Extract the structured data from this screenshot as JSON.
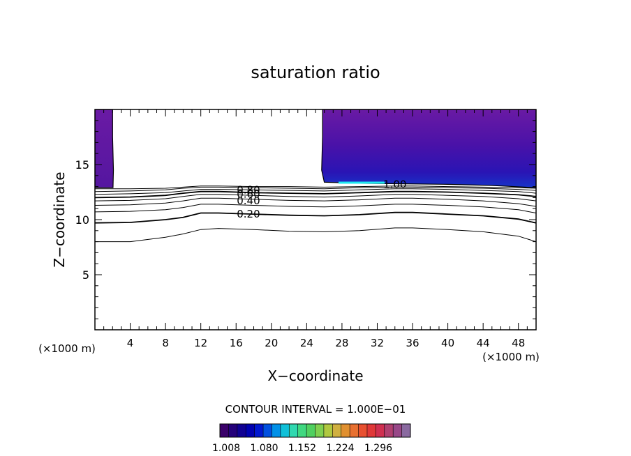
{
  "chart_data": {
    "type": "contour",
    "title": "saturation ratio",
    "xlabel": "X−coordinate",
    "ylabel": "Z−coordinate",
    "x_unit_left": "(×1000 m)",
    "x_unit_right": "(×1000 m)",
    "xlim": [
      0,
      50
    ],
    "ylim": [
      0,
      20
    ],
    "x_ticks": [
      4,
      8,
      12,
      16,
      20,
      24,
      28,
      32,
      36,
      40,
      44,
      48
    ],
    "y_ticks": [
      5,
      10,
      15
    ],
    "x_tick_labels": [
      "4",
      "8",
      "12",
      "16",
      "20",
      "24",
      "28",
      "32",
      "36",
      "40",
      "44",
      "48"
    ],
    "y_tick_labels": [
      "5",
      "10",
      "15"
    ],
    "contour_interval_text": "CONTOUR INTERVAL = 1.000E−01",
    "contour_labels": [
      {
        "text": "0.80",
        "x": 17.4,
        "y": 12.7
      },
      {
        "text": "0.60",
        "x": 17.4,
        "y": 12.3
      },
      {
        "text": "0.40",
        "x": 17.4,
        "y": 11.7
      },
      {
        "text": "0.20",
        "x": 17.4,
        "y": 10.5
      },
      {
        "text": "1.00",
        "x": 34.0,
        "y": 13.2
      }
    ],
    "contour_lines": [
      {
        "level": 0.1,
        "x": [
          0,
          4,
          8,
          10,
          12,
          14,
          18,
          22,
          26,
          30,
          34,
          36,
          40,
          44,
          48,
          50
        ],
        "y": [
          8.0,
          8.0,
          8.4,
          8.7,
          9.1,
          9.2,
          9.1,
          8.95,
          8.9,
          9.0,
          9.25,
          9.25,
          9.1,
          8.9,
          8.5,
          8.0
        ]
      },
      {
        "level": 0.2,
        "x": [
          0,
          4,
          8,
          10,
          12,
          14,
          18,
          22,
          26,
          30,
          34,
          36,
          40,
          44,
          48,
          50
        ],
        "y": [
          9.7,
          9.75,
          10.0,
          10.2,
          10.6,
          10.6,
          10.5,
          10.4,
          10.35,
          10.45,
          10.65,
          10.65,
          10.5,
          10.35,
          10.05,
          9.7
        ]
      },
      {
        "level": 0.3,
        "x": [
          0,
          4,
          8,
          10,
          12,
          14,
          18,
          22,
          26,
          30,
          34,
          36,
          40,
          44,
          48,
          50
        ],
        "y": [
          10.7,
          10.75,
          10.9,
          11.1,
          11.4,
          11.4,
          11.3,
          11.2,
          11.15,
          11.25,
          11.4,
          11.4,
          11.3,
          11.15,
          10.9,
          10.6
        ]
      },
      {
        "level": 0.4,
        "x": [
          0,
          4,
          8,
          10,
          12,
          14,
          18,
          22,
          26,
          30,
          34,
          36,
          40,
          44,
          48,
          50
        ],
        "y": [
          11.3,
          11.35,
          11.5,
          11.7,
          11.95,
          11.95,
          11.85,
          11.75,
          11.7,
          11.8,
          11.95,
          11.95,
          11.85,
          11.7,
          11.45,
          11.2
        ]
      },
      {
        "level": 0.5,
        "x": [
          0,
          4,
          8,
          10,
          12,
          14,
          18,
          22,
          26,
          30,
          34,
          36,
          40,
          44,
          48,
          50
        ],
        "y": [
          11.7,
          11.75,
          11.9,
          12.1,
          12.3,
          12.3,
          12.2,
          12.1,
          12.05,
          12.15,
          12.3,
          12.3,
          12.2,
          12.1,
          11.9,
          11.7
        ]
      },
      {
        "level": 0.6,
        "x": [
          0,
          4,
          8,
          10,
          12,
          14,
          18,
          22,
          26,
          30,
          34,
          36,
          40,
          44,
          48,
          50
        ],
        "y": [
          12.0,
          12.05,
          12.2,
          12.4,
          12.55,
          12.55,
          12.45,
          12.4,
          12.35,
          12.45,
          12.55,
          12.55,
          12.5,
          12.4,
          12.25,
          12.1
        ]
      },
      {
        "level": 0.7,
        "x": [
          0,
          4,
          8,
          10,
          12,
          14,
          18,
          22,
          26,
          30,
          34,
          36,
          40,
          44,
          48,
          50
        ],
        "y": [
          12.3,
          12.35,
          12.45,
          12.6,
          12.75,
          12.75,
          12.7,
          12.65,
          12.6,
          12.7,
          12.8,
          12.8,
          12.75,
          12.65,
          12.55,
          12.4
        ]
      },
      {
        "level": 0.8,
        "x": [
          0,
          4,
          8,
          10,
          12,
          14,
          18,
          22,
          26,
          30,
          34,
          36,
          40,
          44,
          48,
          50
        ],
        "y": [
          12.55,
          12.6,
          12.7,
          12.85,
          12.95,
          12.95,
          12.9,
          12.85,
          12.8,
          12.9,
          12.95,
          12.95,
          12.9,
          12.85,
          12.75,
          12.65
        ]
      },
      {
        "level": 0.9,
        "x": [
          0,
          4,
          8,
          10,
          12,
          14,
          18,
          22,
          26,
          30,
          34,
          36,
          40,
          44,
          48,
          50
        ],
        "y": [
          12.8,
          12.8,
          12.85,
          12.95,
          13.05,
          13.05,
          13.0,
          13.0,
          12.95,
          13.0,
          13.05,
          13.05,
          13.0,
          12.95,
          12.9,
          12.85
        ]
      }
    ],
    "filled_regions": [
      {
        "name": "left",
        "polygon": [
          [
            0,
            20
          ],
          [
            2.0,
            20
          ],
          [
            2.0,
            17.5
          ],
          [
            2.1,
            14.5
          ],
          [
            2.05,
            12.9
          ],
          [
            0,
            12.9
          ]
        ],
        "color": "#5a1a9a"
      },
      {
        "name": "right",
        "polygon": [
          [
            25.8,
            20
          ],
          [
            50,
            20
          ],
          [
            50,
            12.9
          ],
          [
            45,
            13.1
          ],
          [
            40,
            13.2
          ],
          [
            35,
            13.25
          ],
          [
            30,
            13.3
          ],
          [
            26,
            13.4
          ],
          [
            25.7,
            14.5
          ],
          [
            25.8,
            17.5
          ]
        ],
        "color": "#5a1a9a"
      }
    ],
    "colorbar": {
      "tick_labels": [
        "1.008",
        "1.080",
        "1.152",
        "1.224",
        "1.296"
      ],
      "colors": [
        "#3a006a",
        "#24007a",
        "#100092",
        "#0000b0",
        "#0018d0",
        "#0050e0",
        "#0090e8",
        "#10c0d8",
        "#30d8b0",
        "#40d880",
        "#50d060",
        "#80d050",
        "#b0c840",
        "#d0b040",
        "#e09030",
        "#e87030",
        "#e85030",
        "#e03838",
        "#d03050",
        "#b04070",
        "#984888",
        "#8a6aa0"
      ]
    }
  }
}
